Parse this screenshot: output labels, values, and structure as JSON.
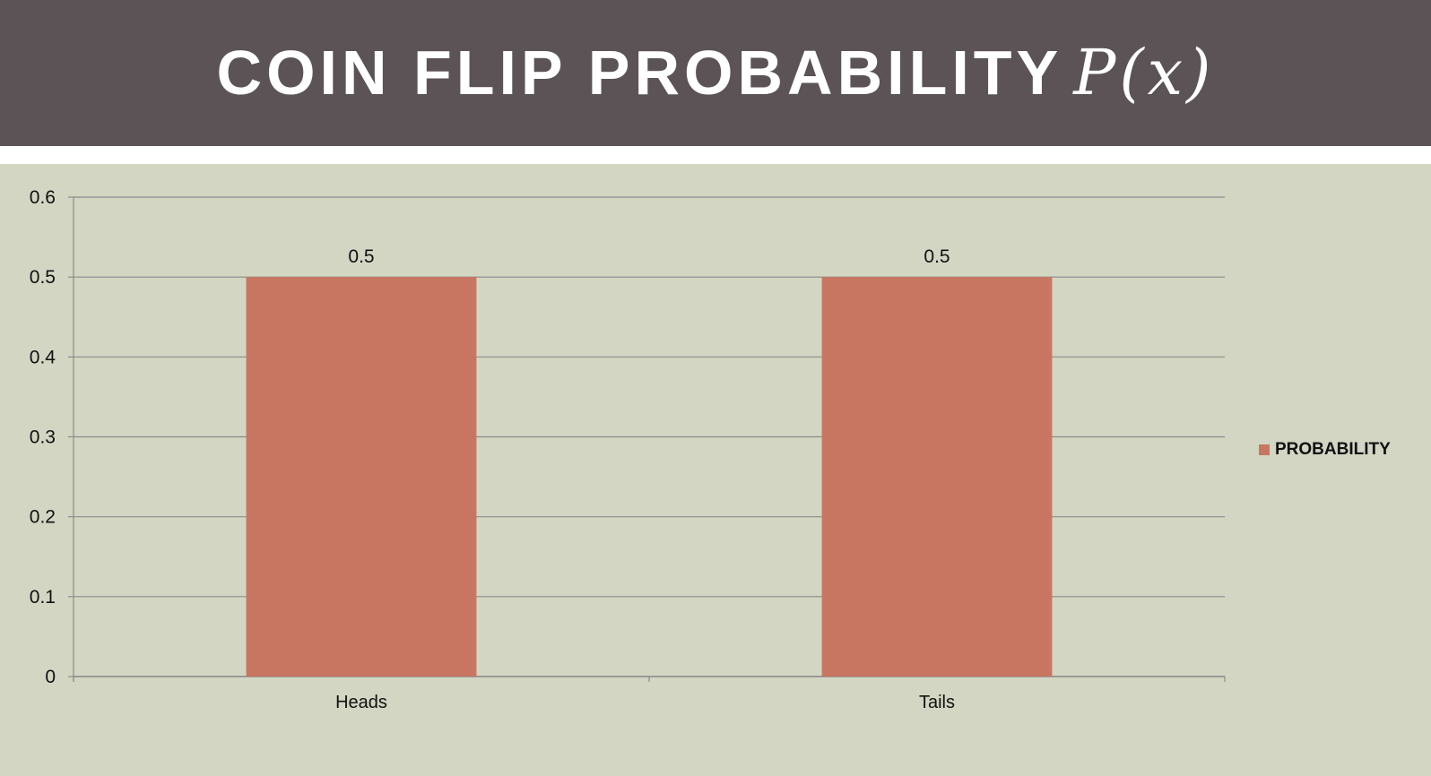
{
  "slide": {
    "title_main": "COIN FLIP PROBABILITY",
    "title_math": "P(x)"
  },
  "colors": {
    "title_bar": "#5b5356",
    "background": "#d3d6c2",
    "bar": "#c87662",
    "grid": "#8c8c8c"
  },
  "chart_data": {
    "type": "bar",
    "title": "",
    "xlabel": "",
    "ylabel": "",
    "categories": [
      "Heads",
      "Tails"
    ],
    "series": [
      {
        "name": "PROBABILITY",
        "values": [
          0.5,
          0.5
        ]
      }
    ],
    "data_labels": [
      "0.5",
      "0.5"
    ],
    "ylim": [
      0,
      0.6
    ],
    "yticks": [
      "0",
      "0.1",
      "0.2",
      "0.3",
      "0.4",
      "0.5",
      "0.6"
    ],
    "grid": true,
    "legend": "right"
  }
}
